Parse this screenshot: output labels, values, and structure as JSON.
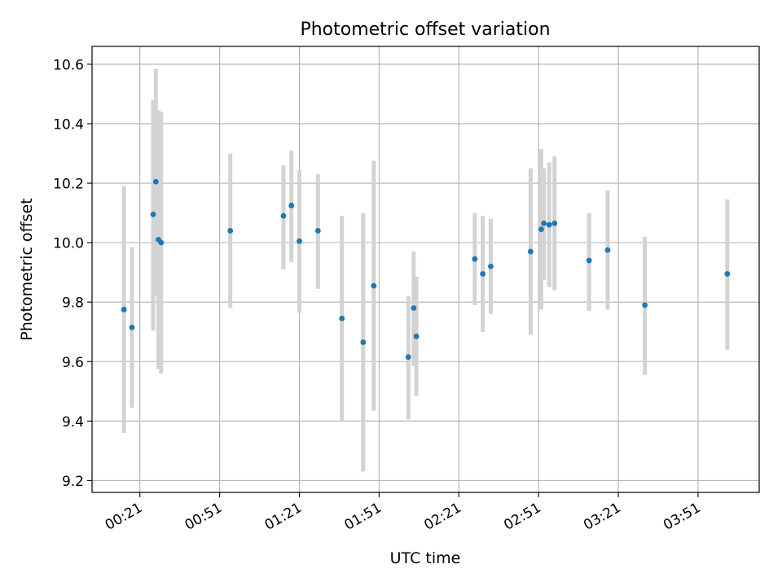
{
  "chart_data": {
    "type": "scatter",
    "title": "Photometric offset variation",
    "xlabel": "UTC time",
    "ylabel": "Photometric offset",
    "xlim": [
      "00:03",
      "04:14"
    ],
    "ylim": [
      9.16,
      10.66
    ],
    "grid": true,
    "colors": {
      "points": "#1f77b4",
      "errorbars": "#d3d3d3",
      "grid": "#b0b0b0",
      "axes": "#000000"
    },
    "x_ticks": [
      "00:21",
      "00:51",
      "01:21",
      "01:51",
      "02:21",
      "02:51",
      "03:21",
      "03:51"
    ],
    "y_ticks": [
      "9.2",
      "9.4",
      "9.6",
      "9.8",
      "10.0",
      "10.2",
      "10.4",
      "10.6"
    ],
    "points": [
      {
        "x": "00:15",
        "y": 9.775,
        "err_low": 9.36,
        "err_high": 10.19
      },
      {
        "x": "00:18",
        "y": 9.715,
        "err_low": 9.445,
        "err_high": 9.985
      },
      {
        "x": "00:26",
        "y": 10.095,
        "err_low": 9.705,
        "err_high": 10.48
      },
      {
        "x": "00:27",
        "y": 10.205,
        "err_low": 9.82,
        "err_high": 10.585
      },
      {
        "x": "00:28",
        "y": 10.01,
        "err_low": 9.575,
        "err_high": 10.445
      },
      {
        "x": "00:29",
        "y": 10.0,
        "err_low": 9.56,
        "err_high": 10.44
      },
      {
        "x": "00:55",
        "y": 10.04,
        "err_low": 9.78,
        "err_high": 10.3
      },
      {
        "x": "01:15",
        "y": 10.09,
        "err_low": 9.91,
        "err_high": 10.26
      },
      {
        "x": "01:18",
        "y": 10.125,
        "err_low": 9.935,
        "err_high": 10.31
      },
      {
        "x": "01:21",
        "y": 10.005,
        "err_low": 9.765,
        "err_high": 10.245
      },
      {
        "x": "01:28",
        "y": 10.04,
        "err_low": 9.845,
        "err_high": 10.23
      },
      {
        "x": "01:37",
        "y": 9.745,
        "err_low": 9.4,
        "err_high": 10.09
      },
      {
        "x": "01:45",
        "y": 9.665,
        "err_low": 9.23,
        "err_high": 10.1
      },
      {
        "x": "01:49",
        "y": 9.855,
        "err_low": 9.435,
        "err_high": 10.275
      },
      {
        "x": "02:02",
        "y": 9.615,
        "err_low": 9.405,
        "err_high": 9.82
      },
      {
        "x": "02:04",
        "y": 9.78,
        "err_low": 9.585,
        "err_high": 9.97
      },
      {
        "x": "02:05",
        "y": 9.685,
        "err_low": 9.485,
        "err_high": 9.885
      },
      {
        "x": "02:27",
        "y": 9.945,
        "err_low": 9.79,
        "err_high": 10.1
      },
      {
        "x": "02:30",
        "y": 9.895,
        "err_low": 9.7,
        "err_high": 10.09
      },
      {
        "x": "02:33",
        "y": 9.92,
        "err_low": 9.76,
        "err_high": 10.08
      },
      {
        "x": "02:48",
        "y": 9.97,
        "err_low": 9.69,
        "err_high": 10.25
      },
      {
        "x": "02:52",
        "y": 10.045,
        "err_low": 9.775,
        "err_high": 10.315
      },
      {
        "x": "02:53",
        "y": 10.065,
        "err_low": 9.875,
        "err_high": 10.25
      },
      {
        "x": "02:55",
        "y": 10.06,
        "err_low": 9.85,
        "err_high": 10.27
      },
      {
        "x": "02:57",
        "y": 10.065,
        "err_low": 9.84,
        "err_high": 10.29
      },
      {
        "x": "03:10",
        "y": 9.94,
        "err_low": 9.77,
        "err_high": 10.1
      },
      {
        "x": "03:17",
        "y": 9.975,
        "err_low": 9.775,
        "err_high": 10.175
      },
      {
        "x": "03:31",
        "y": 9.79,
        "err_low": 9.555,
        "err_high": 10.02
      },
      {
        "x": "04:02",
        "y": 9.895,
        "err_low": 9.64,
        "err_high": 10.145
      }
    ]
  }
}
